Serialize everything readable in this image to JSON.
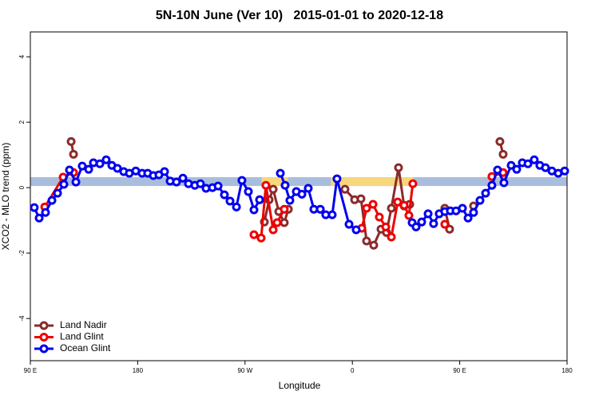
{
  "chart_data": {
    "type": "line",
    "title": "5N-10N June (Ver 10)   2015-01-01 to 2020-12-18",
    "xlabel": "Longitude",
    "ylabel": "XCO2 - MLO trend (ppm)",
    "xlim": [
      90,
      540
    ],
    "ylim": [
      -5.29,
      4.76
    ],
    "xticks": [
      {
        "value": 90,
        "label": "90 E"
      },
      180,
      {
        "value": 270,
        "label": "90 W"
      },
      {
        "value": 360,
        "label": "0"
      },
      {
        "value": 450,
        "label": "90 E"
      },
      {
        "value": 540,
        "label": "180"
      }
    ],
    "yticks": [
      -4,
      -2,
      0,
      2,
      4
    ],
    "legend": "bottom-left",
    "band": {
      "range": [
        0.05,
        0.32
      ],
      "color": "#a9bedc"
    },
    "highlights": {
      "ranges": [
        [
          284,
          306
        ],
        [
          342,
          411
        ]
      ],
      "color": "#f7d77c"
    },
    "series": [
      {
        "name": "Land Nadir",
        "color": "#8b2a2a",
        "x": [
          124.2,
          126.2,
          null,
          286.2,
          290.2,
          293.6,
          298.3,
          302.9,
          306.3,
          null,
          353.8,
          361.9,
          367.2,
          371.9,
          377.9,
          384.0,
          388.6,
          392.7,
          398.7,
          403.4,
          408.1,
          null,
          437.5,
          441.5,
          null,
          461.6,
          null,
          483.7,
          486.4
        ],
        "values": [
          1.41,
          1.02,
          null,
          -1.05,
          -0.37,
          -0.05,
          -0.73,
          -1.07,
          -0.66,
          null,
          -0.05,
          -0.37,
          -0.34,
          -1.63,
          -1.76,
          -1.27,
          -1.37,
          -0.63,
          0.61,
          -0.56,
          -0.51,
          null,
          -0.63,
          -1.27,
          null,
          -0.56,
          null,
          1.41,
          1.02
        ]
      },
      {
        "name": "Land Glint",
        "color": "#ee0000",
        "x": [
          102.1,
          117.5,
          126.2,
          null,
          277.5,
          283.5,
          287.5,
          293.6,
          296.9,
          302.9,
          null,
          367.9,
          371.9,
          377.3,
          382.6,
          388.0,
          392.7,
          398.0,
          403.4,
          407.4,
          410.7,
          null,
          437.5,
          null,
          477.0,
          486.4
        ],
        "values": [
          -0.59,
          0.32,
          0.46,
          null,
          -1.44,
          -1.54,
          0.07,
          -1.29,
          -1.07,
          -0.66,
          null,
          -1.24,
          -0.63,
          -0.51,
          -0.9,
          -1.2,
          -1.51,
          -0.44,
          -0.54,
          -0.85,
          0.12,
          null,
          -1.12,
          null,
          0.34,
          0.46
        ]
      },
      {
        "name": "Ocean Glint",
        "color": "#0000ee",
        "x": [
          93.3,
          97.4,
          102.7,
          108.1,
          112.8,
          118.1,
          122.8,
          128.2,
          133.5,
          138.9,
          142.9,
          148.3,
          153.6,
          158.3,
          163.0,
          168.3,
          173.0,
          178.4,
          183.7,
          188.4,
          193.1,
          197.8,
          202.5,
          207.2,
          212.5,
          217.9,
          222.6,
          227.9,
          232.6,
          237.3,
          242.7,
          247.4,
          252.7,
          257.4,
          262.8,
          267.4,
          272.8,
          277.5,
          282.2,
          null,
          299.6,
          303.6,
          307.6,
          313.0,
          317.7,
          323.0,
          327.7,
          333.1,
          337.7,
          343.1,
          347.1,
          357.2,
          363.2,
          null,
          410.1,
          413.4,
          418.1,
          423.5,
          428.1,
          432.8,
          437.5,
          442.2,
          446.9,
          452.3,
          457.0,
          461.6,
          467.0,
          471.7,
          477.0,
          481.7,
          487.1,
          493.1,
          497.8,
          502.5,
          507.2,
          512.5,
          517.2,
          521.9,
          527.3,
          532.6,
          538.0
        ],
        "values": [
          -0.61,
          -0.93,
          -0.76,
          -0.39,
          -0.17,
          0.1,
          0.54,
          0.17,
          0.66,
          0.56,
          0.76,
          0.73,
          0.85,
          0.68,
          0.59,
          0.49,
          0.44,
          0.51,
          0.44,
          0.44,
          0.37,
          0.39,
          0.49,
          0.2,
          0.17,
          0.29,
          0.12,
          0.07,
          0.12,
          -0.02,
          0.0,
          0.05,
          -0.22,
          -0.41,
          -0.59,
          0.22,
          -0.12,
          -0.68,
          -0.37,
          null,
          0.44,
          0.07,
          -0.39,
          -0.12,
          -0.2,
          -0.02,
          -0.66,
          -0.66,
          -0.83,
          -0.83,
          0.27,
          -1.12,
          -1.29,
          null,
          -1.07,
          -1.2,
          -1.05,
          -0.8,
          -1.1,
          -0.8,
          -0.73,
          -0.71,
          -0.71,
          -0.63,
          -0.93,
          -0.76,
          -0.39,
          -0.17,
          0.07,
          0.54,
          0.15,
          0.68,
          0.56,
          0.76,
          0.73,
          0.85,
          0.68,
          0.61,
          0.51,
          0.44,
          0.51
        ]
      }
    ]
  }
}
